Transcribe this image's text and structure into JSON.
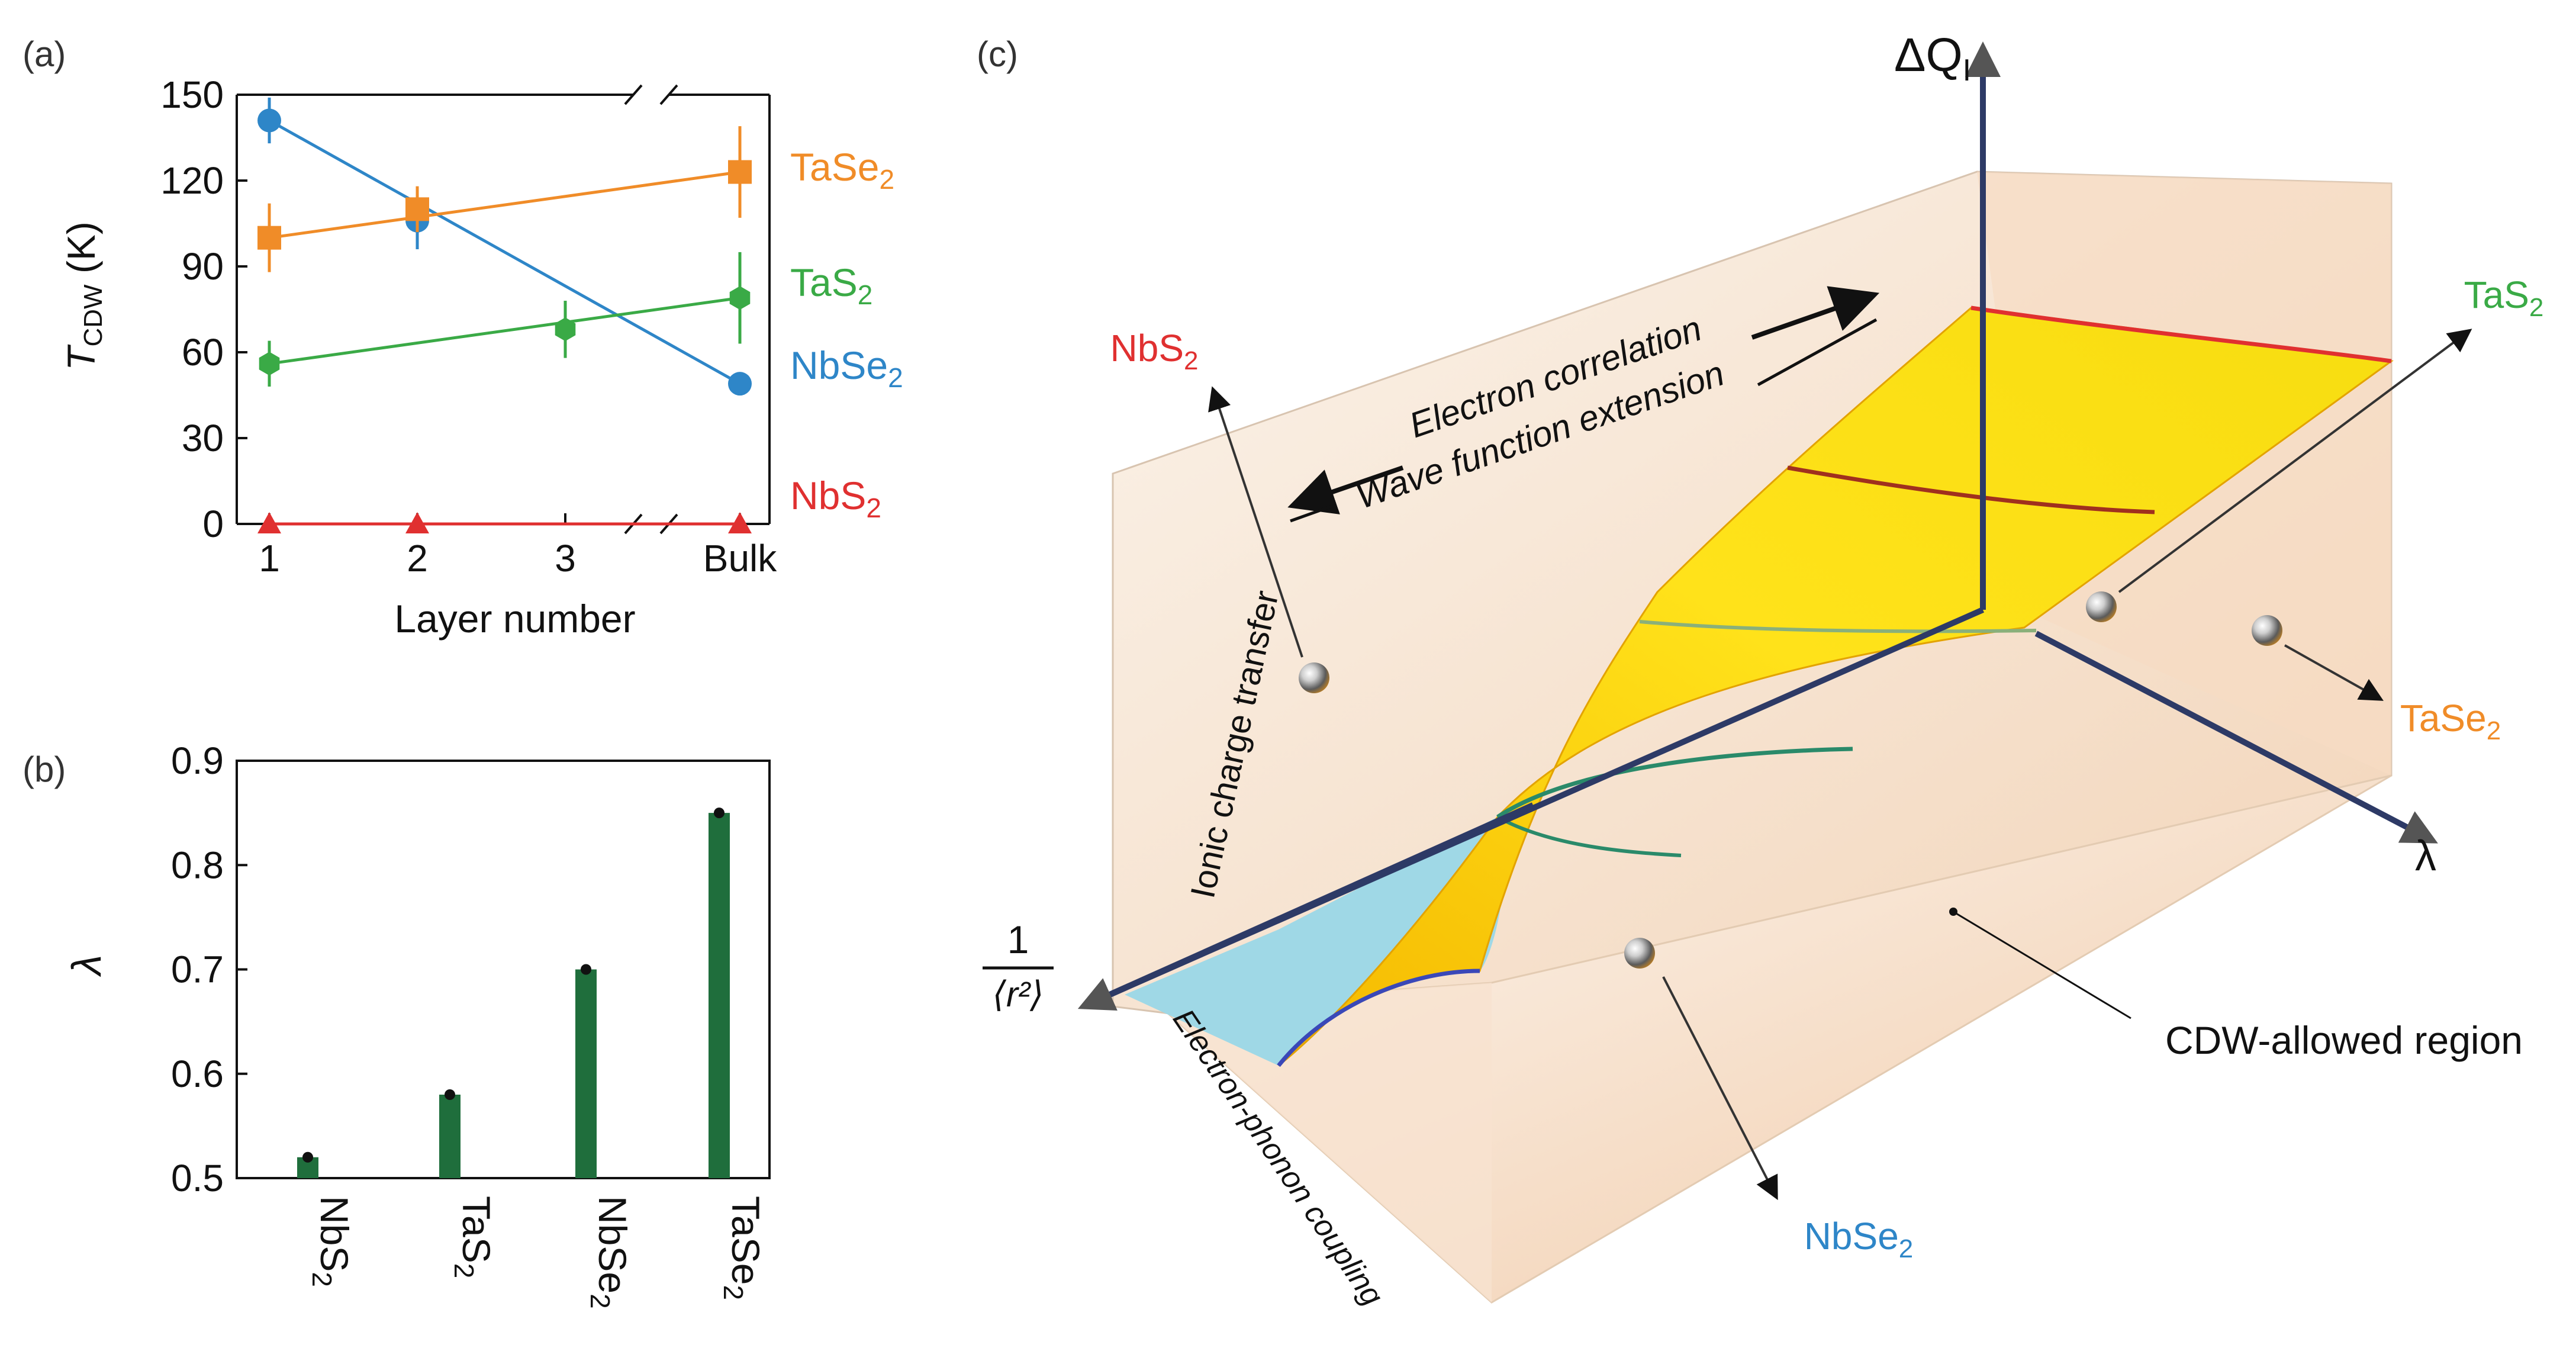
{
  "chart_data": [
    {
      "type": "line",
      "panel_label": "(a)",
      "xlabel": "Layer number",
      "ylabel_main": "T",
      "ylabel_sub": "CDW",
      "ylabel_unit": " (K)",
      "x_ticks": [
        "1",
        "2",
        "3",
        "Bulk"
      ],
      "x_break": true,
      "ylim": [
        0,
        150
      ],
      "y_ticks": [
        "0",
        "30",
        "60",
        "90",
        "120",
        "150"
      ],
      "y_tick_values": [
        0,
        30,
        60,
        90,
        120,
        150
      ],
      "series": [
        {
          "name": "NbSe2",
          "label_main": "NbSe",
          "label_sub": "2",
          "color": "#2e86c8",
          "marker": "circle",
          "points": [
            {
              "x": 1,
              "y": 141,
              "err": 8
            },
            {
              "x": 2,
              "y": 106,
              "err": 10
            },
            {
              "x": "Bulk",
              "y": 49,
              "err": 0
            }
          ],
          "fit": [
            [
              1,
              141
            ],
            [
              4,
              49
            ]
          ]
        },
        {
          "name": "TaSe2",
          "label_main": "TaSe",
          "label_sub": "2",
          "color": "#f08c28",
          "marker": "square",
          "points": [
            {
              "x": 1,
              "y": 100,
              "err": 12
            },
            {
              "x": 2,
              "y": 110,
              "err": 8
            },
            {
              "x": "Bulk",
              "y": 123,
              "err": 16
            }
          ],
          "fit": [
            [
              1,
              100
            ],
            [
              4,
              123
            ]
          ]
        },
        {
          "name": "TaS2",
          "label_main": "TaS",
          "label_sub": "2",
          "color": "#3aaa46",
          "marker": "hexagon",
          "points": [
            {
              "x": 1,
              "y": 56,
              "err": 8
            },
            {
              "x": 3,
              "y": 68,
              "err": 10
            },
            {
              "x": "Bulk",
              "y": 79,
              "err": 16
            }
          ],
          "fit": [
            [
              1,
              56
            ],
            [
              4,
              79
            ]
          ]
        },
        {
          "name": "NbS2",
          "label_main": "NbS",
          "label_sub": "2",
          "color": "#e03030",
          "marker": "triangle",
          "points": [
            {
              "x": 1,
              "y": 0,
              "err": 0
            },
            {
              "x": 2,
              "y": 0,
              "err": 0
            },
            {
              "x": "Bulk",
              "y": 0,
              "err": 0
            }
          ],
          "fit": [
            [
              1,
              0
            ],
            [
              4,
              0
            ]
          ]
        }
      ]
    },
    {
      "type": "bar",
      "panel_label": "(b)",
      "ylabel": "λ",
      "ylim": [
        0.5,
        0.9
      ],
      "y_ticks": [
        "0.5",
        "0.6",
        "0.7",
        "0.8",
        "0.9"
      ],
      "y_tick_values": [
        0.5,
        0.6,
        0.7,
        0.8,
        0.9
      ],
      "categories": [
        {
          "main": "NbS",
          "sub": "2"
        },
        {
          "main": "TaS",
          "sub": "2"
        },
        {
          "main": "NbSe",
          "sub": "2"
        },
        {
          "main": "TaSe",
          "sub": "2"
        }
      ],
      "values": [
        0.52,
        0.58,
        0.7,
        0.85
      ],
      "color": "#1f6e3c"
    },
    {
      "type": "diagram",
      "panel_label": "(c)",
      "axes": {
        "z_main": "ΔQ",
        "z_sub": "I",
        "x": "λ",
        "y_num": "1",
        "y_den": "⟨r²⟩"
      },
      "wall_labels": {
        "ionic": "Ionic charge transfer",
        "electron_phonon": "Electron-phonon coupling",
        "electron_correlation": "Electron correlation",
        "wave_function": "Wave function extension",
        "region": "CDW-allowed region"
      },
      "materials": [
        {
          "main": "NbS",
          "sub": "2",
          "color": "#e03030"
        },
        {
          "main": "TaS",
          "sub": "2",
          "color": "#3aaa46"
        },
        {
          "main": "TaSe",
          "sub": "2",
          "color": "#f08c28"
        },
        {
          "main": "NbSe",
          "sub": "2",
          "color": "#2e86c8"
        }
      ]
    }
  ]
}
